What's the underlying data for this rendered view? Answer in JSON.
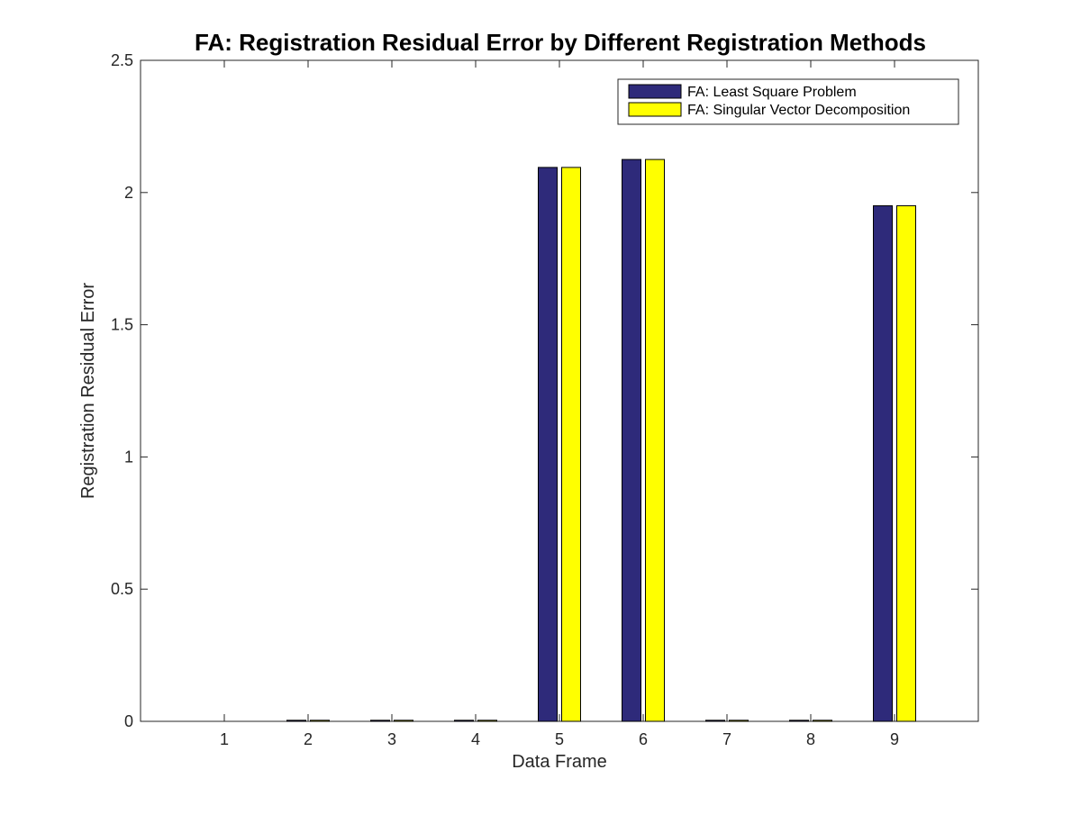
{
  "chart_data": {
    "type": "bar",
    "title": "FA: Registration Residual Error by Different Registration Methods",
    "xlabel": "Data Frame",
    "ylabel": "Registration Residual Error",
    "categories": [
      "1",
      "2",
      "3",
      "4",
      "5",
      "6",
      "7",
      "8",
      "9"
    ],
    "series": [
      {
        "name": "FA: Least Square Problem",
        "color": "#2e2a7a",
        "values": [
          0.0,
          0.004,
          0.004,
          0.004,
          2.095,
          2.125,
          0.004,
          0.004,
          1.95
        ]
      },
      {
        "name": "FA: Singular Vector Decomposition",
        "color": "#ffff00",
        "values": [
          0.0,
          0.004,
          0.004,
          0.004,
          2.095,
          2.125,
          0.004,
          0.004,
          1.95
        ]
      }
    ],
    "ylim": [
      0,
      2.5
    ],
    "yticks": [
      "0",
      "0.5",
      "1",
      "1.5",
      "2",
      "2.5"
    ],
    "grid": false,
    "legend_position": "top-right"
  }
}
